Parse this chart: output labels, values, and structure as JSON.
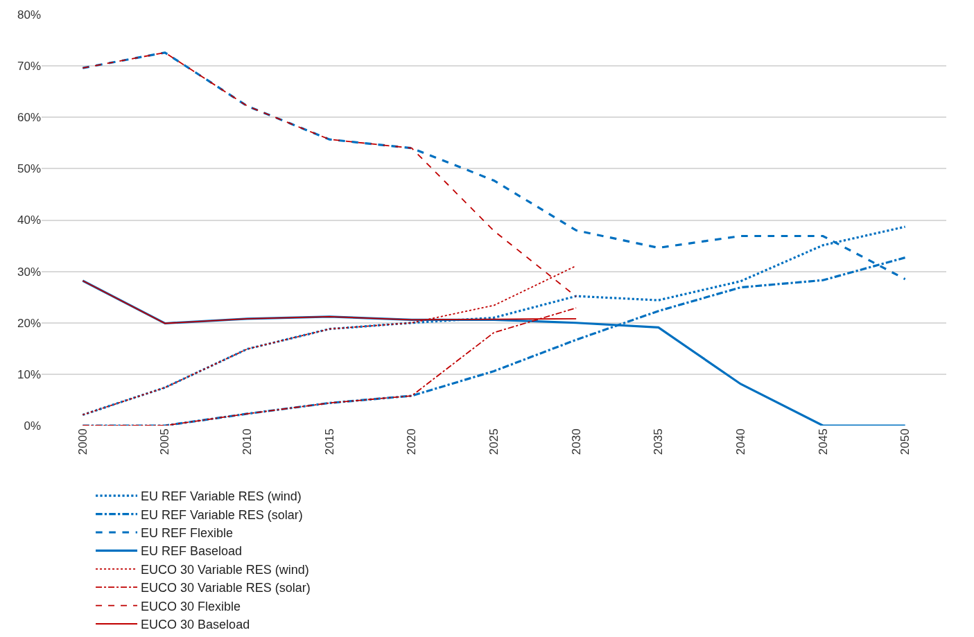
{
  "chart_data": {
    "type": "line",
    "categories": [
      "2000",
      "2005",
      "2010",
      "2015",
      "2020",
      "2025",
      "2030",
      "2035",
      "2040",
      "2045",
      "2050"
    ],
    "ylim": [
      0,
      80
    ],
    "yticks": [
      {
        "value": 0,
        "label": "0%"
      },
      {
        "value": 10,
        "label": "10%"
      },
      {
        "value": 20,
        "label": "20%"
      },
      {
        "value": 30,
        "label": "30%"
      },
      {
        "value": 40,
        "label": "40%"
      },
      {
        "value": 50,
        "label": "50%"
      },
      {
        "value": 60,
        "label": "60%"
      },
      {
        "value": 70,
        "label": "70%"
      },
      {
        "value": 80,
        "label": "80%"
      }
    ],
    "grid": "y",
    "legend": "bottom",
    "marker": "none",
    "series": [
      {
        "name": "EU REF Variable RES (wind)",
        "color": "#0070c0",
        "line_style": "dotted",
        "values": [
          2.1,
          7.4,
          14.9,
          18.8,
          20.0,
          21.0,
          25.2,
          24.4,
          28.1,
          35.1,
          38.7
        ]
      },
      {
        "name": "EU REF Variable RES (solar)",
        "color": "#0070c0",
        "line_style": "dashdot",
        "values": [
          0,
          0,
          2.3,
          4.4,
          5.8,
          10.6,
          16.7,
          22.3,
          26.9,
          28.3,
          32.7
        ]
      },
      {
        "name": "EU REF Flexible",
        "color": "#0070c0",
        "line_style": "dashed",
        "values": [
          69.6,
          72.6,
          62.2,
          55.7,
          54.0,
          47.7,
          38.0,
          34.6,
          36.9,
          36.9,
          28.5
        ]
      },
      {
        "name": "EU REF Baseload",
        "color": "#0070c0",
        "line_style": "solid",
        "values": [
          28.2,
          19.9,
          20.8,
          21.2,
          20.6,
          20.6,
          20.0,
          19.1,
          8.1,
          0,
          0
        ]
      },
      {
        "name": "EUCO 30 Variable RES (wind)",
        "color": "#c00000",
        "line_style": "dotted",
        "values": [
          2.1,
          7.4,
          14.9,
          18.8,
          20.0,
          23.4,
          31.1,
          null,
          null,
          null,
          null
        ]
      },
      {
        "name": "EUCO 30 Variable RES (solar)",
        "color": "#c00000",
        "line_style": "dashdot",
        "values": [
          0,
          0,
          2.3,
          4.4,
          5.8,
          18.1,
          22.9,
          null,
          null,
          null,
          null
        ]
      },
      {
        "name": "EUCO 30 Flexible",
        "color": "#c00000",
        "line_style": "dashed",
        "values": [
          69.6,
          72.6,
          62.2,
          55.7,
          54.0,
          37.9,
          25.1,
          null,
          null,
          null,
          null
        ]
      },
      {
        "name": "EUCO 30 Baseload",
        "color": "#c00000",
        "line_style": "solid",
        "values": [
          28.2,
          19.9,
          20.8,
          21.2,
          20.6,
          20.7,
          20.8,
          null,
          null,
          null,
          null
        ]
      }
    ]
  }
}
